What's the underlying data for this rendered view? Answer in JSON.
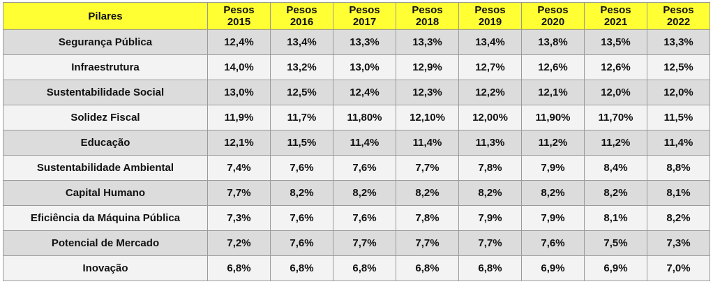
{
  "table": {
    "header": {
      "pilar_label": "Pilares",
      "years": [
        {
          "line1": "Pesos",
          "line2": "2015"
        },
        {
          "line1": "Pesos",
          "line2": "2016"
        },
        {
          "line1": "Pesos",
          "line2": "2017"
        },
        {
          "line1": "Pesos",
          "line2": "2018"
        },
        {
          "line1": "Pesos",
          "line2": "2019"
        },
        {
          "line1": "Pesos",
          "line2": "2020"
        },
        {
          "line1": "Pesos",
          "line2": "2021"
        },
        {
          "line1": "Pesos",
          "line2": "2022"
        }
      ]
    },
    "rows": [
      {
        "pilar": "Segurança Pública",
        "values": [
          "12,4%",
          "13,4%",
          "13,3%",
          "13,3%",
          "13,4%",
          "13,8%",
          "13,5%",
          "13,3%"
        ]
      },
      {
        "pilar": "Infraestrutura",
        "values": [
          "14,0%",
          "13,2%",
          "13,0%",
          "12,9%",
          "12,7%",
          "12,6%",
          "12,6%",
          "12,5%"
        ]
      },
      {
        "pilar": "Sustentabilidade Social",
        "values": [
          "13,0%",
          "12,5%",
          "12,4%",
          "12,3%",
          "12,2%",
          "12,1%",
          "12,0%",
          "12,0%"
        ]
      },
      {
        "pilar": "Solidez Fiscal",
        "values": [
          "11,9%",
          "11,7%",
          "11,80%",
          "12,10%",
          "12,00%",
          "11,90%",
          "11,70%",
          "11,5%"
        ]
      },
      {
        "pilar": "Educação",
        "values": [
          "12,1%",
          "11,5%",
          "11,4%",
          "11,4%",
          "11,3%",
          "11,2%",
          "11,2%",
          "11,4%"
        ]
      },
      {
        "pilar": "Sustentabilidade Ambiental",
        "values": [
          "7,4%",
          "7,6%",
          "7,6%",
          "7,7%",
          "7,8%",
          "7,9%",
          "8,4%",
          "8,8%"
        ]
      },
      {
        "pilar": "Capital Humano",
        "values": [
          "7,7%",
          "8,2%",
          "8,2%",
          "8,2%",
          "8,2%",
          "8,2%",
          "8,2%",
          "8,1%"
        ]
      },
      {
        "pilar": "Eficiência da Máquina Pública",
        "values": [
          "7,3%",
          "7,6%",
          "7,6%",
          "7,8%",
          "7,9%",
          "7,9%",
          "8,1%",
          "8,2%"
        ]
      },
      {
        "pilar": "Potencial de Mercado",
        "values": [
          "7,2%",
          "7,6%",
          "7,7%",
          "7,7%",
          "7,7%",
          "7,6%",
          "7,5%",
          "7,3%"
        ]
      },
      {
        "pilar": "Inovação",
        "values": [
          "6,8%",
          "6,8%",
          "6,8%",
          "6,8%",
          "6,8%",
          "6,9%",
          "6,9%",
          "7,0%"
        ]
      }
    ]
  },
  "colors": {
    "header_bg": "#ffff33",
    "row_dark": "#dcdcdc",
    "row_light": "#f3f3f3",
    "border": "#9a9a9a"
  }
}
